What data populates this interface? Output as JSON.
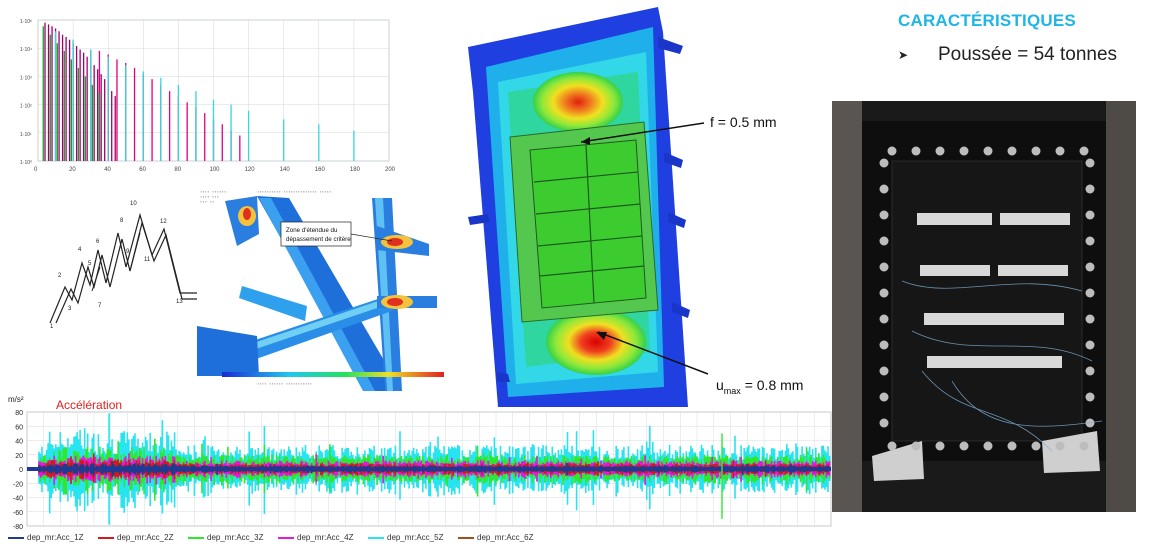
{
  "header": {
    "title": "CARACTÉRISTIQUES",
    "bullet_symbol": "➤",
    "bullet_text": "Poussée = 54 tonnes"
  },
  "spectrum_chart": {
    "y_ticks": [
      "1·10⁵",
      "1·10⁴",
      "1·10³",
      "1·10²",
      "1·10¹",
      "1·10⁰"
    ],
    "x_ticks": [
      "0",
      "20",
      "40",
      "60",
      "80",
      "100",
      "120",
      "140",
      "160",
      "180",
      "200"
    ]
  },
  "fatigue_sketch": {
    "labels": [
      "1",
      "2",
      "3",
      "4",
      "5",
      "6",
      "7",
      "8",
      "9",
      "10",
      "11",
      "12",
      "13"
    ]
  },
  "fem_frame": {
    "callout": [
      "Zone d'étendue du",
      "dépassement de critère"
    ]
  },
  "fem_plate": {
    "annotation_f": "f = 0.5 mm",
    "annotation_u_main": "u",
    "annotation_u_sub": "max",
    "annotation_u_value": " = 0.8 mm"
  },
  "accel_chart": {
    "title": "Accélération",
    "unit": "m/s²",
    "y_ticks": [
      "80",
      "60",
      "40",
      "20",
      "0",
      "-20",
      "-40",
      "-60",
      "-80"
    ],
    "legend": [
      "dep_mr:Acc_1Z",
      "dep_mr:Acc_2Z",
      "dep_mr:Acc_3Z",
      "dep_mr:Acc_4Z",
      "dep_mr:Acc_5Z",
      "dep_mr:Acc_6Z"
    ]
  },
  "chart_data": [
    {
      "type": "bar",
      "title": "",
      "xlabel": "",
      "ylabel": "",
      "x_range": [
        0,
        200
      ],
      "y_scale": "log",
      "ylim": [
        1,
        100000
      ],
      "series": [
        {
          "color": "#a0006a",
          "x": [
            4,
            6,
            8,
            10,
            12,
            14,
            16,
            18,
            20,
            22,
            24,
            26,
            28,
            30,
            32,
            34,
            36,
            38,
            40,
            42,
            44
          ],
          "values": [
            80000,
            70000,
            60000,
            50000,
            40000,
            30000,
            25000,
            20000,
            15000,
            12000,
            9000,
            7000,
            5000,
            3500,
            2500,
            1800,
            1200,
            800,
            500,
            300,
            200
          ]
        },
        {
          "color": "#e0007f",
          "x": [
            30,
            35,
            40,
            45,
            50,
            55,
            60,
            65,
            70,
            75,
            80,
            85,
            90,
            95,
            100,
            105,
            110,
            115
          ],
          "values": [
            9000,
            8000,
            6000,
            4000,
            3000,
            2000,
            1200,
            800,
            500,
            300,
            200,
            120,
            80,
            50,
            30,
            20,
            12,
            8
          ]
        },
        {
          "color": "#35d6e0",
          "x": [
            10,
            20,
            30,
            40,
            50,
            60,
            70,
            80,
            90,
            100,
            110,
            120,
            140,
            160,
            180
          ],
          "values": [
            40000,
            20000,
            9000,
            5000,
            2500,
            1500,
            900,
            500,
            300,
            150,
            100,
            60,
            30,
            20,
            12
          ]
        },
        {
          "color": "#1a9e2a",
          "x": [
            3,
            7,
            11,
            15,
            19,
            23,
            27,
            31,
            35
          ],
          "values": [
            60000,
            30000,
            15000,
            8000,
            4000,
            2000,
            1000,
            500,
            250
          ]
        }
      ],
      "grid": true
    },
    {
      "type": "line",
      "title": "Accélération",
      "ylabel": "m/s²",
      "ylim": [
        -80,
        80
      ],
      "grid": true,
      "legend_position": "bottom",
      "series": [
        {
          "name": "dep_mr:Acc_1Z",
          "color": "#1f3a93"
        },
        {
          "name": "dep_mr:Acc_2Z",
          "color": "#d11a1a"
        },
        {
          "name": "dep_mr:Acc_3Z",
          "color": "#2ee82e"
        },
        {
          "name": "dep_mr:Acc_4Z",
          "color": "#e01ae0"
        },
        {
          "name": "dep_mr:Acc_5Z",
          "color": "#28e3f0"
        },
        {
          "name": "dep_mr:Acc_6Z",
          "color": "#a05020"
        }
      ]
    }
  ]
}
